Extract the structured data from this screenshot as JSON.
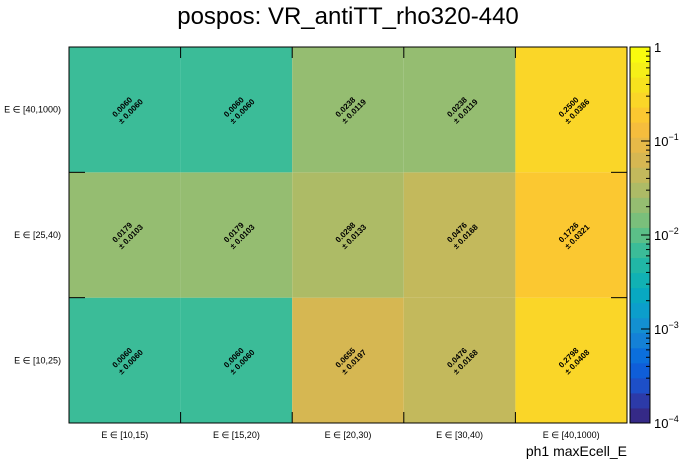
{
  "chart_data": {
    "type": "heatmap",
    "title": "pospos: VR_antiTT_rho320-440",
    "xlabel": "ph1 maxEcell_E",
    "ylabel": "",
    "x_categories": [
      "E ∈ [10,15)",
      "E ∈ [15,20)",
      "E ∈ [20,30)",
      "E ∈ [30,40)",
      "E ∈ [40,1000)"
    ],
    "y_categories": [
      "E ∈ [10,25)",
      "E ∈ [25,40)",
      "E ∈ [40,1000)"
    ],
    "values": [
      [
        0.006,
        0.006,
        0.0655,
        0.0476,
        0.2798
      ],
      [
        0.0179,
        0.0179,
        0.0298,
        0.0476,
        0.1726
      ],
      [
        0.006,
        0.006,
        0.0238,
        0.0238,
        0.25
      ]
    ],
    "value_labels": [
      [
        "0.0060",
        "0.0060",
        "0.0655",
        "0.0476",
        "0.2798"
      ],
      [
        "0.0179",
        "0.0179",
        "0.0298",
        "0.0476",
        "0.1726"
      ],
      [
        "0.0060",
        "0.0060",
        "0.0238",
        "0.0238",
        "0.2500"
      ]
    ],
    "error_labels": [
      [
        "± 0.0060",
        "± 0.0060",
        "± 0.0197",
        "± 0.0168",
        "± 0.0408"
      ],
      [
        "± 0.0103",
        "± 0.0103",
        "± 0.0133",
        "± 0.0168",
        "± 0.0321"
      ],
      [
        "± 0.0060",
        "± 0.0060",
        "± 0.0119",
        "± 0.0119",
        "± 0.0386"
      ]
    ],
    "zlim": [
      0.0001,
      1
    ],
    "z_scale": "log",
    "colorbar_ticks": [
      {
        "base": "1",
        "exp": ""
      },
      {
        "base": "10",
        "exp": "−1"
      },
      {
        "base": "10",
        "exp": "−2"
      },
      {
        "base": "10",
        "exp": "−3"
      },
      {
        "base": "10",
        "exp": "−4"
      }
    ],
    "colorbar_tick_values": [
      1,
      0.1,
      0.01,
      0.001,
      0.0001
    ],
    "palette": [
      "#352a87",
      "#2c3aa8",
      "#1d4fc8",
      "#0f5ed9",
      "#0b6fdc",
      "#1481d6",
      "#1390d1",
      "#0c9ecb",
      "#08a8c1",
      "#11b1b4",
      "#21b7a6",
      "#3bbc98",
      "#5bbf88",
      "#7abf7b",
      "#95bd71",
      "#adbb66",
      "#c3b95c",
      "#d6b752",
      "#e7b948",
      "#f5bd3d",
      "#fbc831",
      "#fad628",
      "#f7e21e",
      "#f6ef18",
      "#f9fb0e"
    ],
    "grid": false,
    "legend": "colorbar-right"
  }
}
